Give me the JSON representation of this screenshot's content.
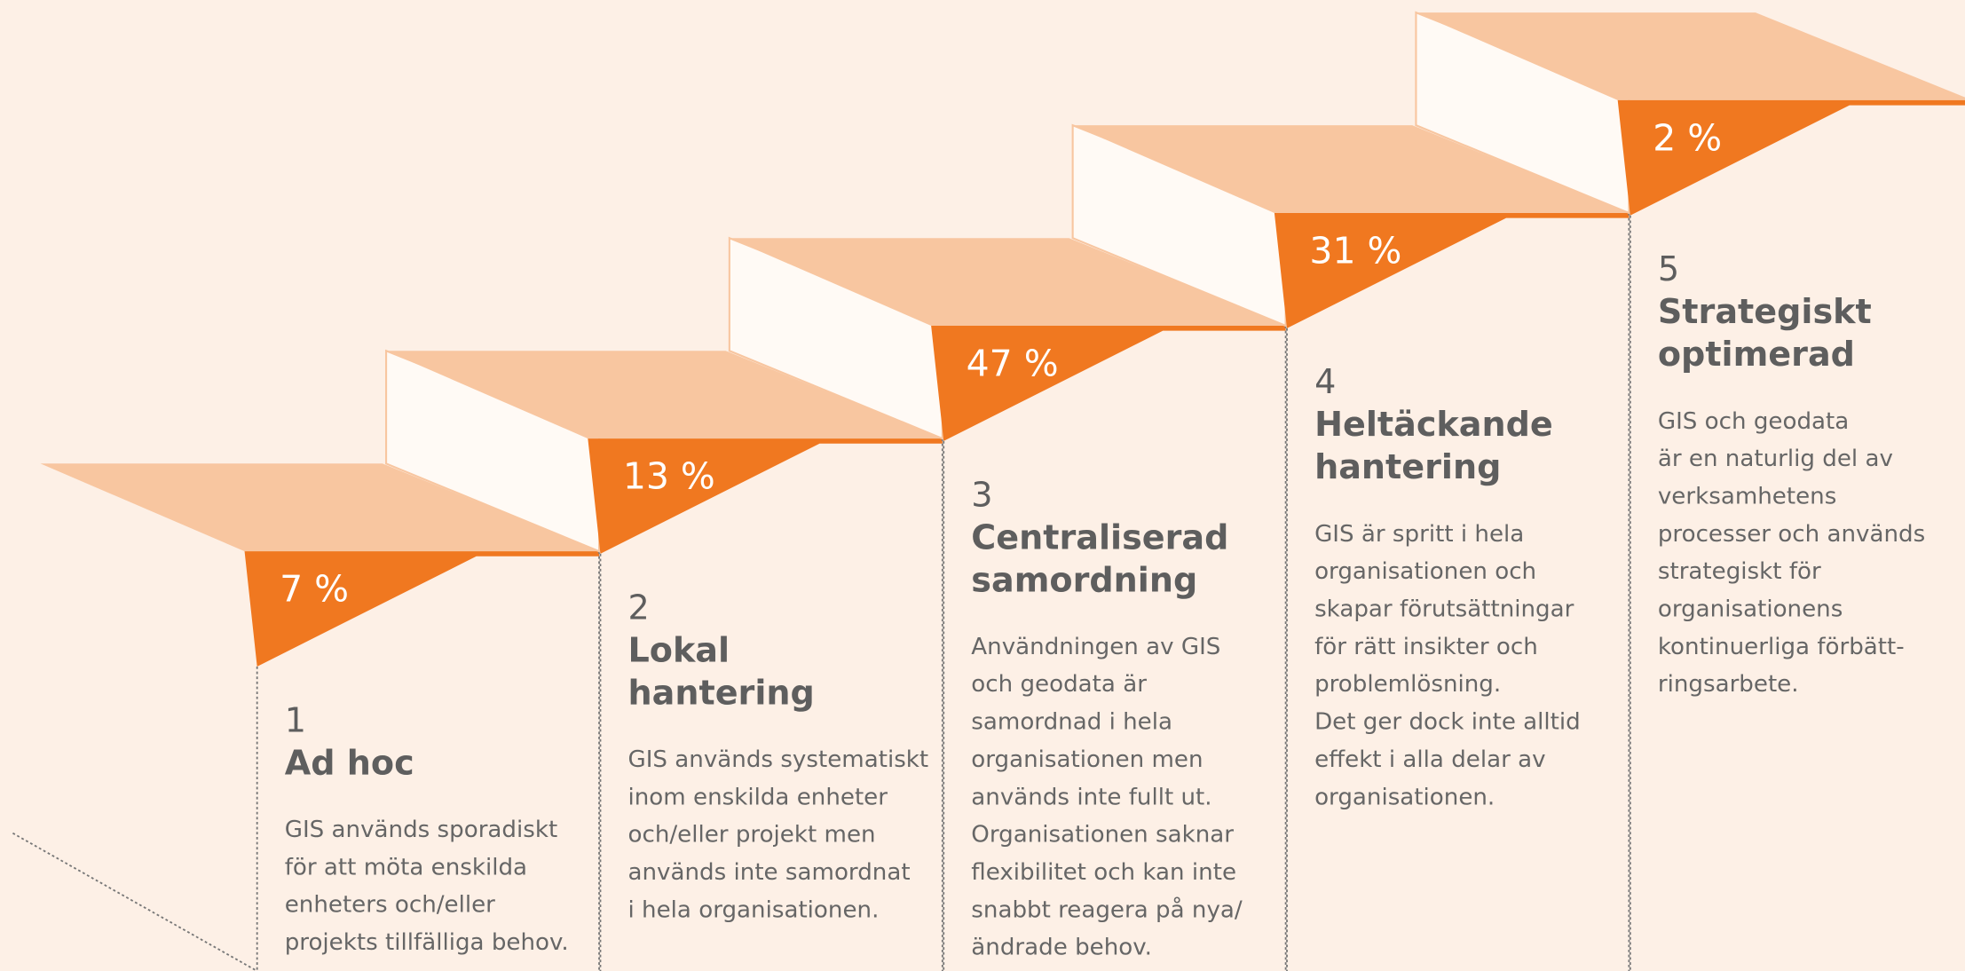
{
  "steps": [
    {
      "number": "1",
      "title": [
        "Ad hoc"
      ],
      "percent": "7 %",
      "description": [
        "GIS används sporadiskt",
        "för att möta enskilda",
        "enheters och/eller",
        "projekts tillfälliga behov."
      ]
    },
    {
      "number": "2",
      "title": [
        "Lokal",
        "hantering"
      ],
      "percent": "13 %",
      "description": [
        "GIS används systematiskt",
        "inom enskilda enheter",
        "och/eller projekt men",
        "används inte samordnat",
        "i hela organisationen."
      ]
    },
    {
      "number": "3",
      "title": [
        "Centraliserad",
        "samordning"
      ],
      "percent": "47 %",
      "description": [
        "Användningen av GIS",
        "och  geodata är",
        "samordnad i hela",
        "organisationen men",
        "används inte fullt ut.",
        "Organisationen saknar",
        "flexibilitet och kan inte",
        "snabbt reagera på nya/",
        "ändrade behov."
      ]
    },
    {
      "number": "4",
      "title": [
        "Heltäckande",
        "hantering"
      ],
      "percent": "31 %",
      "description": [
        "GIS är spritt i hela",
        "organisationen och",
        "skapar förutsättningar",
        "för rätt insikter och",
        "problemlösning.",
        "Det ger dock inte alltid",
        "effekt i alla delar av",
        "organisationen."
      ]
    },
    {
      "number": "5",
      "title": [
        "Strategiskt",
        "optimerad"
      ],
      "percent": "2 %",
      "description": [
        "GIS och geodata",
        "är en naturlig del av",
        "verksamhetens",
        "processer och används",
        "strategiskt för",
        "organisationens",
        "kontinuerliga förbätt-",
        "ringsarbete."
      ]
    }
  ]
}
